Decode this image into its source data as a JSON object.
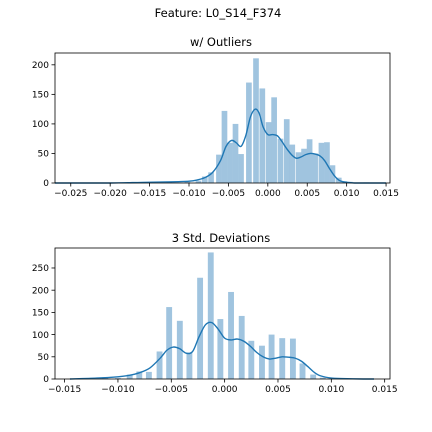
{
  "figure": {
    "suptitle": "Feature: L0_S14_F374"
  },
  "chart_data": [
    {
      "type": "bar",
      "title": "w/ Outliers",
      "xlabel": "",
      "ylabel": "",
      "xlim": [
        -0.027,
        0.0155
      ],
      "ylim": [
        0,
        220
      ],
      "xticks": [
        -0.025,
        -0.02,
        -0.015,
        -0.01,
        -0.005,
        0.0,
        0.005,
        0.01,
        0.015
      ],
      "xtick_labels": [
        "−0.025",
        "−0.020",
        "−0.015",
        "−0.010",
        "−0.005",
        "0.000",
        "0.005",
        "0.010",
        "0.015"
      ],
      "yticks": [
        0,
        50,
        100,
        150,
        200
      ],
      "ytick_labels": [
        "0",
        "50",
        "100",
        "150",
        "200"
      ],
      "bin_width": 0.00072,
      "bins": [
        {
          "x": -0.016,
          "h": 1
        },
        {
          "x": -0.0125,
          "h": 1
        },
        {
          "x": -0.0102,
          "h": 2
        },
        {
          "x": -0.0088,
          "h": 4
        },
        {
          "x": -0.008,
          "h": 11
        },
        {
          "x": -0.0072,
          "h": 18
        },
        {
          "x": -0.0062,
          "h": 48
        },
        {
          "x": -0.0055,
          "h": 122
        },
        {
          "x": -0.0048,
          "h": 68
        },
        {
          "x": -0.0041,
          "h": 100
        },
        {
          "x": -0.0034,
          "h": 49
        },
        {
          "x": -0.0024,
          "h": 170
        },
        {
          "x": -0.0015,
          "h": 211
        },
        {
          "x": -0.0007,
          "h": 160
        },
        {
          "x": 0.0001,
          "h": 103
        },
        {
          "x": 0.0008,
          "h": 145
        },
        {
          "x": 0.0016,
          "h": 75
        },
        {
          "x": 0.0024,
          "h": 108
        },
        {
          "x": 0.0031,
          "h": 65
        },
        {
          "x": 0.0039,
          "h": 52
        },
        {
          "x": 0.0046,
          "h": 58
        },
        {
          "x": 0.0053,
          "h": 74
        },
        {
          "x": 0.006,
          "h": 50
        },
        {
          "x": 0.0068,
          "h": 68
        },
        {
          "x": 0.0075,
          "h": 69
        },
        {
          "x": 0.0082,
          "h": 30
        },
        {
          "x": 0.009,
          "h": 9
        },
        {
          "x": 0.0097,
          "h": 3
        },
        {
          "x": 0.0104,
          "h": 2
        },
        {
          "x": 0.0125,
          "h": 1
        }
      ],
      "kde": {
        "x": [
          -0.027,
          -0.02,
          -0.016,
          -0.012,
          -0.01,
          -0.009,
          -0.008,
          -0.007,
          -0.006,
          -0.0053,
          -0.0046,
          -0.004,
          -0.0034,
          -0.0028,
          -0.0022,
          -0.0016,
          -0.0011,
          -0.0006,
          0.0,
          0.0006,
          0.0012,
          0.0018,
          0.0024,
          0.003,
          0.0036,
          0.0042,
          0.0048,
          0.0054,
          0.006,
          0.0066,
          0.0072,
          0.0078,
          0.0084,
          0.009,
          0.0096,
          0.0102,
          0.011,
          0.013,
          0.015
        ],
        "y": [
          0,
          0,
          1,
          2,
          3,
          5,
          9,
          18,
          38,
          62,
          72,
          68,
          62,
          80,
          112,
          125,
          118,
          95,
          82,
          82,
          80,
          70,
          58,
          48,
          42,
          44,
          48,
          50,
          49,
          46,
          38,
          25,
          13,
          5,
          2,
          1,
          0,
          0,
          0
        ]
      }
    },
    {
      "type": "bar",
      "title": "3 Std. Deviations",
      "xlabel": "",
      "ylabel": "",
      "xlim": [
        -0.0159,
        0.0155
      ],
      "ylim": [
        0,
        295
      ],
      "xticks": [
        -0.015,
        -0.01,
        -0.005,
        0.0,
        0.005,
        0.01,
        0.015
      ],
      "xtick_labels": [
        "−0.015",
        "−0.010",
        "−0.005",
        "0.000",
        "0.005",
        "0.010",
        "0.015"
      ],
      "yticks": [
        0,
        50,
        100,
        150,
        200,
        250
      ],
      "ytick_labels": [
        "0",
        "50",
        "100",
        "150",
        "200",
        "250"
      ],
      "bin_width": 0.00055,
      "bins": [
        {
          "x": -0.0124,
          "h": 2
        },
        {
          "x": -0.0112,
          "h": 4
        },
        {
          "x": -0.01,
          "h": 2
        },
        {
          "x": -0.0089,
          "h": 10
        },
        {
          "x": -0.008,
          "h": 17
        },
        {
          "x": -0.0071,
          "h": 16
        },
        {
          "x": -0.0061,
          "h": 62
        },
        {
          "x": -0.0052,
          "h": 162
        },
        {
          "x": -0.0042,
          "h": 131
        },
        {
          "x": -0.0033,
          "h": 60
        },
        {
          "x": -0.0023,
          "h": 228
        },
        {
          "x": -0.0013,
          "h": 285
        },
        {
          "x": -0.0004,
          "h": 135
        },
        {
          "x": 0.0006,
          "h": 196
        },
        {
          "x": 0.0016,
          "h": 142
        },
        {
          "x": 0.0025,
          "h": 86
        },
        {
          "x": 0.0035,
          "h": 75
        },
        {
          "x": 0.0044,
          "h": 100
        },
        {
          "x": 0.0054,
          "h": 92
        },
        {
          "x": 0.0064,
          "h": 91
        },
        {
          "x": 0.0073,
          "h": 35
        },
        {
          "x": 0.0083,
          "h": 10
        },
        {
          "x": 0.0092,
          "h": 3
        },
        {
          "x": 0.0102,
          "h": 2
        },
        {
          "x": 0.0112,
          "h": 1
        }
      ],
      "kde": {
        "x": [
          -0.0145,
          -0.012,
          -0.01,
          -0.009,
          -0.008,
          -0.007,
          -0.006,
          -0.0054,
          -0.0048,
          -0.0042,
          -0.0036,
          -0.003,
          -0.0024,
          -0.0018,
          -0.0012,
          -0.0006,
          0.0,
          0.0006,
          0.0012,
          0.0018,
          0.0024,
          0.003,
          0.0036,
          0.0042,
          0.0048,
          0.0054,
          0.006,
          0.0066,
          0.0072,
          0.0078,
          0.0084,
          0.009,
          0.01,
          0.011,
          0.013,
          0.014
        ],
        "y": [
          0,
          2,
          5,
          8,
          14,
          25,
          48,
          65,
          72,
          68,
          58,
          62,
          95,
          122,
          127,
          112,
          92,
          88,
          90,
          85,
          74,
          60,
          50,
          45,
          47,
          50,
          49,
          47,
          40,
          28,
          15,
          7,
          2,
          1,
          0,
          0
        ]
      }
    }
  ]
}
